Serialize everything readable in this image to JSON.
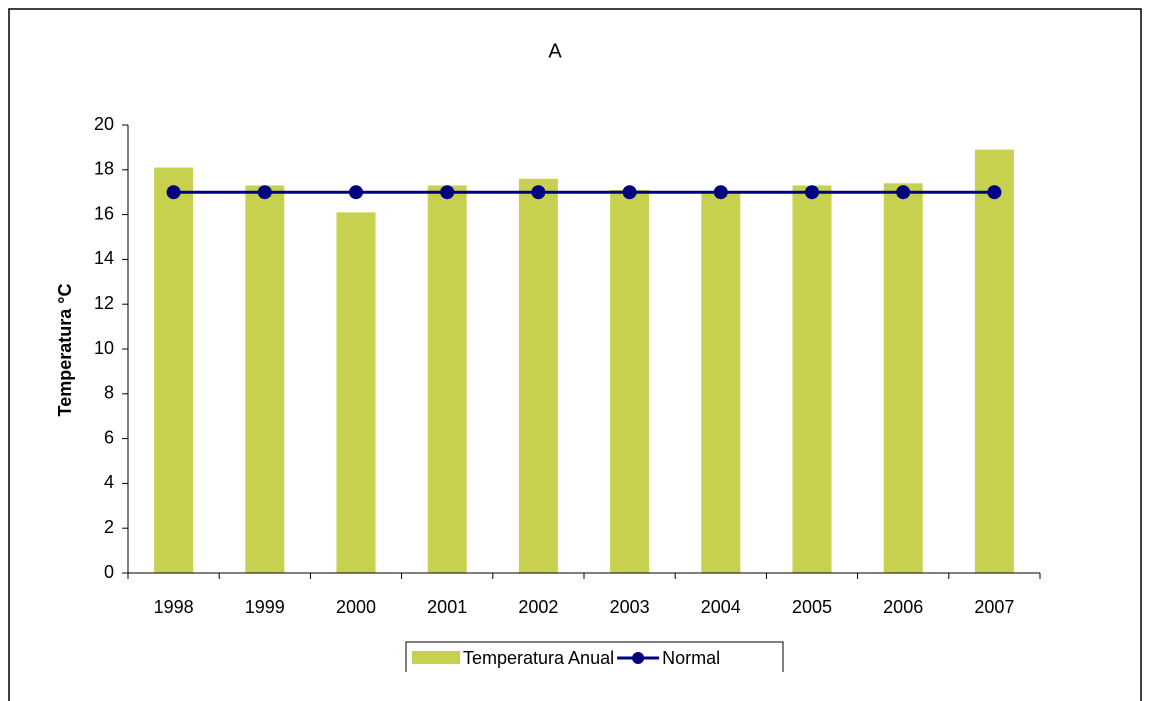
{
  "chart_data": {
    "type": "bar",
    "title": "A",
    "y_label": "Temperatura °C",
    "categories": [
      "1998",
      "1999",
      "2000",
      "2001",
      "2002",
      "2003",
      "2004",
      "2005",
      "2006",
      "2007"
    ],
    "series": [
      {
        "name": "Temperatura Anual",
        "type": "bar",
        "color": "#c8d14f",
        "values": [
          18.1,
          17.3,
          16.1,
          17.3,
          17.6,
          17.1,
          17.0,
          17.3,
          17.4,
          18.9
        ]
      },
      {
        "name": "Normal",
        "type": "line",
        "color": "#000080",
        "values": [
          17,
          17,
          17,
          17,
          17,
          17,
          17,
          17,
          17,
          17
        ]
      }
    ],
    "ylim": [
      0,
      20
    ],
    "yticks": [
      0,
      2,
      4,
      6,
      8,
      10,
      12,
      14,
      16,
      18,
      20
    ],
    "legend": "bottom"
  }
}
